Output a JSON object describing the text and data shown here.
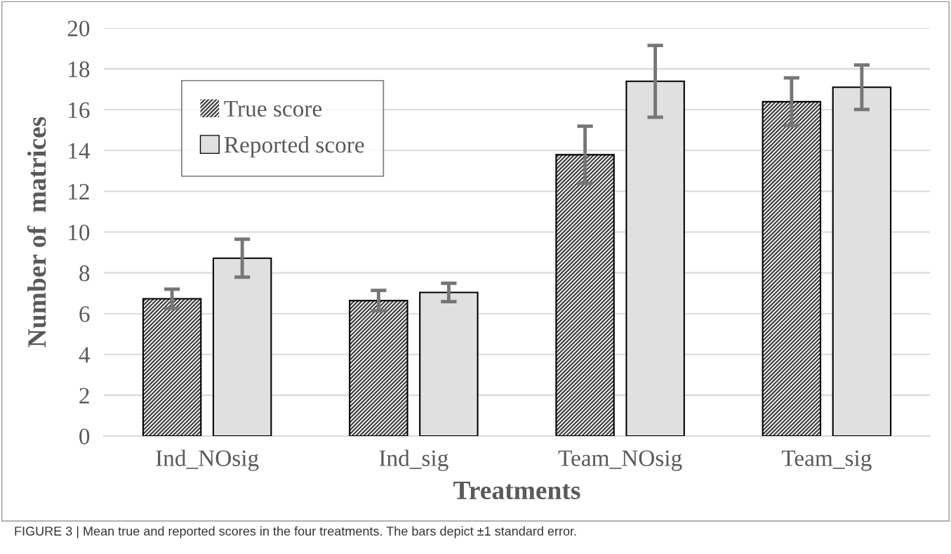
{
  "chart_data": {
    "type": "bar",
    "xlabel": "Treatments",
    "ylabel": "Number of  matrices",
    "categories": [
      "Ind_NOsig",
      "Ind_sig",
      "Team_NOsig",
      "Team_sig"
    ],
    "series": [
      {
        "name": "True score",
        "color": "#404040",
        "values": [
          6.73,
          6.64,
          13.79,
          16.39
        ],
        "errors": [
          0.47,
          0.5,
          1.4,
          1.17
        ]
      },
      {
        "name": "Reported score",
        "color": "#e0e0e0",
        "values": [
          8.72,
          7.04,
          17.39,
          17.1
        ],
        "errors": [
          0.93,
          0.45,
          1.76,
          1.09
        ]
      }
    ],
    "ylim": [
      0,
      20
    ],
    "yticks": [
      0,
      2,
      4,
      6,
      8,
      10,
      12,
      14,
      16,
      18,
      20
    ],
    "grid": "y",
    "legend": "top left",
    "annotations": [
      "FIGURE 3 | Mean true and reported scores in the four treatments. The bars depict ±1 standard error."
    ]
  }
}
